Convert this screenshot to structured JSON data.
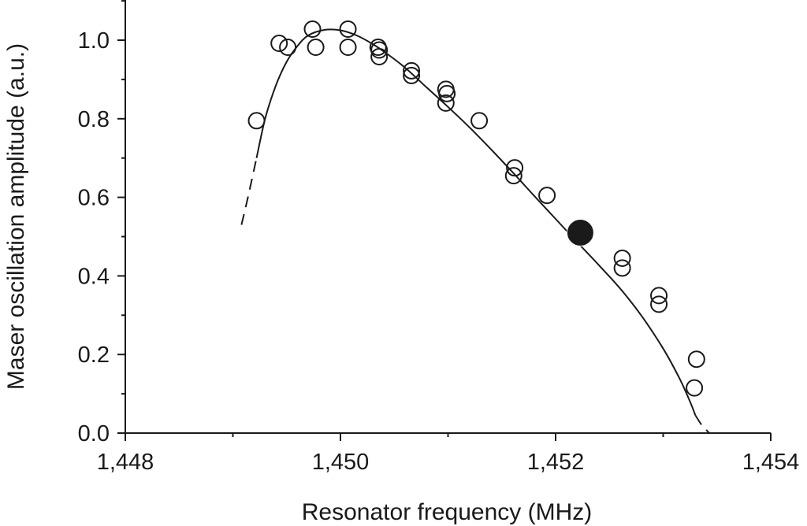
{
  "chart_data": {
    "type": "scatter",
    "title": "",
    "xlabel": "Resonator frequency (MHz)",
    "ylabel": "Maser oscillation amplitude (a.u.)",
    "xlim": [
      1448,
      1454
    ],
    "ylim": [
      0,
      1.08
    ],
    "x_ticks": [
      1448,
      1450,
      1452,
      1454
    ],
    "x_tick_labels": [
      "1,448",
      "1,450",
      "1,452",
      "1,454"
    ],
    "y_ticks": [
      0.0,
      0.2,
      0.4,
      0.6,
      0.8,
      1.0
    ],
    "y_tick_labels": [
      "0.0",
      "0.2",
      "0.4",
      "0.6",
      "0.8",
      "1.0"
    ],
    "grid": false,
    "series": [
      {
        "marker": "open-circle",
        "color": "#1a1a1a",
        "points": [
          [
            1449.22,
            0.795
          ],
          [
            1449.43,
            0.992
          ],
          [
            1449.51,
            0.982
          ],
          [
            1449.74,
            1.028
          ],
          [
            1449.77,
            0.982
          ],
          [
            1450.07,
            1.028
          ],
          [
            1450.07,
            0.982
          ],
          [
            1450.35,
            0.982
          ],
          [
            1450.36,
            0.975
          ],
          [
            1450.36,
            0.958
          ],
          [
            1450.66,
            0.922
          ],
          [
            1450.66,
            0.91
          ],
          [
            1450.98,
            0.875
          ],
          [
            1450.99,
            0.864
          ],
          [
            1450.98,
            0.84
          ],
          [
            1451.29,
            0.795
          ],
          [
            1451.62,
            0.675
          ],
          [
            1451.61,
            0.655
          ],
          [
            1451.92,
            0.605
          ],
          [
            1452.62,
            0.445
          ],
          [
            1452.62,
            0.42
          ],
          [
            1452.96,
            0.35
          ],
          [
            1452.96,
            0.328
          ],
          [
            1453.31,
            0.188
          ],
          [
            1453.29,
            0.115
          ]
        ]
      },
      {
        "marker": "filled-circle",
        "color": "#1a1a1a",
        "points": [
          [
            1452.23,
            0.51
          ]
        ]
      }
    ],
    "fit_curve": {
      "solid": [
        [
          1449.22,
          0.7
        ],
        [
          1449.3,
          0.8
        ],
        [
          1449.4,
          0.885
        ],
        [
          1449.5,
          0.945
        ],
        [
          1449.6,
          0.985
        ],
        [
          1449.7,
          1.012
        ],
        [
          1449.85,
          1.026
        ],
        [
          1450.0,
          1.025
        ],
        [
          1450.15,
          1.012
        ],
        [
          1450.3,
          0.99
        ],
        [
          1450.45,
          0.962
        ],
        [
          1450.6,
          0.93
        ],
        [
          1450.8,
          0.88
        ],
        [
          1451.0,
          0.83
        ],
        [
          1451.2,
          0.778
        ],
        [
          1451.4,
          0.722
        ],
        [
          1451.6,
          0.664
        ],
        [
          1451.8,
          0.604
        ],
        [
          1452.0,
          0.545
        ],
        [
          1452.2,
          0.486
        ],
        [
          1452.4,
          0.428
        ],
        [
          1452.6,
          0.368
        ],
        [
          1452.8,
          0.298
        ],
        [
          1453.0,
          0.215
        ],
        [
          1453.15,
          0.14
        ],
        [
          1453.25,
          0.08
        ],
        [
          1453.3,
          0.045
        ]
      ],
      "dashed_left": [
        [
          1449.08,
          0.53
        ],
        [
          1449.14,
          0.6
        ],
        [
          1449.22,
          0.7
        ]
      ],
      "dashed_right": [
        [
          1453.3,
          0.045
        ],
        [
          1453.36,
          0.02
        ],
        [
          1453.43,
          0.0
        ]
      ]
    }
  }
}
